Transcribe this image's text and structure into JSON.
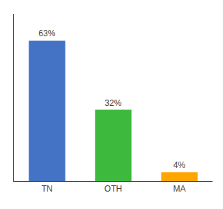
{
  "chart_data": {
    "type": "bar",
    "categories": [
      "TN",
      "OTH",
      "MA"
    ],
    "values": [
      63,
      32,
      4
    ],
    "value_labels": [
      "63%",
      "32%",
      "4%"
    ],
    "data_labels": true,
    "colors": [
      "#4472c4",
      "#3dba3d",
      "#ffa500"
    ],
    "ylim": [
      0,
      75
    ],
    "grid": false,
    "tick_labels": "x"
  }
}
